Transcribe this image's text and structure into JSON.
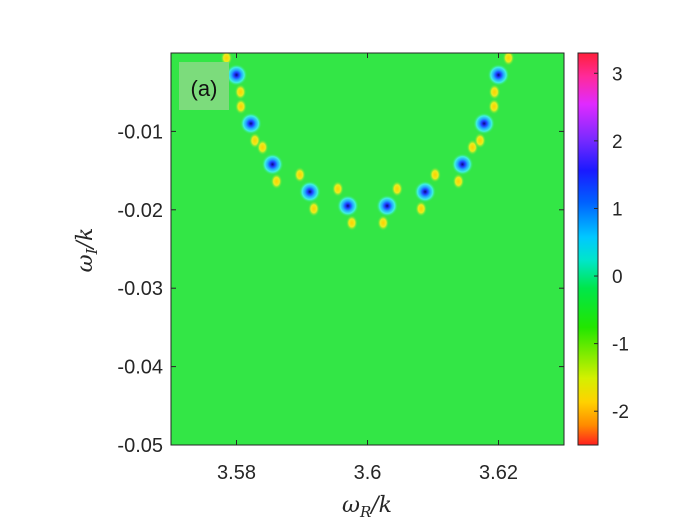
{
  "chart_data": {
    "type": "heatmap",
    "panel_label": "(a)",
    "xlabel": "ω_R/k",
    "ylabel": "ω_I/k",
    "xlim": [
      3.57,
      3.63
    ],
    "ylim": [
      -0.05,
      0.0
    ],
    "x_ticks": [
      3.58,
      3.6,
      3.62
    ],
    "x_tick_labels": [
      "3.58",
      "3.6",
      "3.62"
    ],
    "y_ticks": [
      -0.01,
      -0.02,
      -0.03,
      -0.04,
      -0.05
    ],
    "y_tick_labels": [
      "-0.01",
      "-0.02",
      "-0.03",
      "-0.04",
      "-0.05"
    ],
    "background_value": -0.5,
    "colorbar": {
      "range": [
        -2.5,
        3.3
      ],
      "ticks": [
        3,
        2,
        1,
        0,
        -1,
        -2
      ],
      "tick_labels": [
        "3",
        "2",
        "1",
        "0",
        "-1",
        "-2"
      ],
      "colormap": "hsv-like (red-magenta-blue-cyan-green-yellow-orange-red)"
    },
    "roots": [
      {
        "x": 3.58,
        "y": -0.0028
      },
      {
        "x": 3.5822,
        "y": -0.009
      },
      {
        "x": 3.5855,
        "y": -0.0142
      },
      {
        "x": 3.5912,
        "y": -0.0177
      },
      {
        "x": 3.597,
        "y": -0.0195
      },
      {
        "x": 3.603,
        "y": -0.0195
      },
      {
        "x": 3.6088,
        "y": -0.0177
      },
      {
        "x": 3.6145,
        "y": -0.0142
      },
      {
        "x": 3.6178,
        "y": -0.009
      },
      {
        "x": 3.62,
        "y": -0.0028
      }
    ]
  }
}
